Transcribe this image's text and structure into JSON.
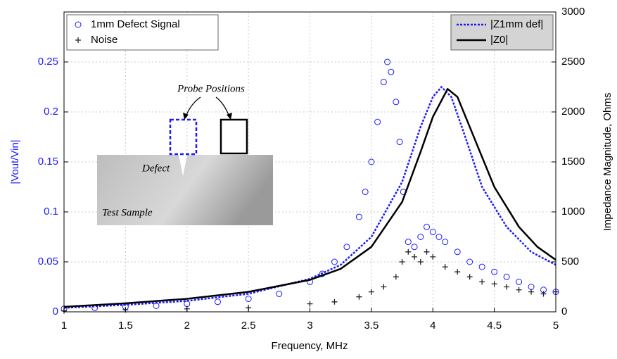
{
  "chart_data": {
    "type": "scatter",
    "xlabel": "Frequency, MHz",
    "ylabel": "|Vout/Vin|",
    "y2label": "Impedance Magnitude, Ohms",
    "xlim": [
      1,
      5
    ],
    "xticks": [
      1,
      1.5,
      2,
      2.5,
      3,
      3.5,
      4,
      4.5,
      5
    ],
    "ylim": [
      0,
      0.3
    ],
    "yticks": [
      0,
      0.05,
      0.1,
      0.15,
      0.2,
      0.25
    ],
    "y2lim": [
      0,
      3000
    ],
    "y2ticks": [
      0,
      500,
      1000,
      1500,
      2000,
      2500,
      3000
    ],
    "grid": true,
    "legend_loc": "upper left",
    "legend2_loc": "upper right",
    "annotations": [
      "Probe Positions",
      "Defect",
      "Test Sample"
    ],
    "series": [
      {
        "name": "1mm Defect Signal",
        "type": "scatter",
        "marker": "circle",
        "color": "#1a1aff",
        "x": [
          1,
          1.25,
          1.5,
          1.75,
          2,
          2.25,
          2.5,
          2.75,
          3,
          3.1,
          3.2,
          3.3,
          3.4,
          3.45,
          3.5,
          3.55,
          3.6,
          3.63,
          3.66,
          3.7,
          3.73,
          3.76,
          3.8,
          3.85,
          3.9,
          3.95,
          4,
          4.05,
          4.1,
          4.2,
          4.3,
          4.4,
          4.5,
          4.6,
          4.7,
          4.8,
          4.9,
          5
        ],
        "values": [
          0.003,
          0.004,
          0.005,
          0.006,
          0.008,
          0.01,
          0.013,
          0.018,
          0.03,
          0.038,
          0.05,
          0.065,
          0.095,
          0.12,
          0.15,
          0.19,
          0.23,
          0.25,
          0.24,
          0.21,
          0.17,
          0.12,
          0.07,
          0.065,
          0.075,
          0.085,
          0.08,
          0.075,
          0.07,
          0.06,
          0.05,
          0.045,
          0.04,
          0.035,
          0.03,
          0.025,
          0.022,
          0.02
        ]
      },
      {
        "name": "Noise",
        "type": "scatter",
        "marker": "plus",
        "color": "#222222",
        "x": [
          1,
          1.5,
          2,
          2.5,
          3,
          3.2,
          3.4,
          3.5,
          3.6,
          3.7,
          3.75,
          3.8,
          3.85,
          3.9,
          3.95,
          4,
          4.1,
          4.2,
          4.3,
          4.4,
          4.5,
          4.6,
          4.7,
          4.8,
          4.9,
          5
        ],
        "values": [
          0.001,
          0.002,
          0.003,
          0.004,
          0.008,
          0.01,
          0.015,
          0.02,
          0.025,
          0.035,
          0.05,
          0.06,
          0.055,
          0.05,
          0.06,
          0.055,
          0.045,
          0.04,
          0.035,
          0.03,
          0.028,
          0.025,
          0.022,
          0.02,
          0.018,
          0.02
        ]
      },
      {
        "name": "|Z1mm def|",
        "type": "line",
        "axis": "y2",
        "linestyle": "dotted",
        "color": "#1a1aff",
        "x": [
          1,
          1.5,
          2,
          2.5,
          3,
          3.25,
          3.5,
          3.75,
          3.9,
          4,
          4.07,
          4.15,
          4.25,
          4.4,
          4.6,
          4.8,
          5
        ],
        "values": [
          40,
          70,
          110,
          180,
          330,
          470,
          750,
          1300,
          1850,
          2150,
          2250,
          2150,
          1800,
          1250,
          850,
          600,
          470
        ]
      },
      {
        "name": "|Z0|",
        "type": "line",
        "axis": "y2",
        "linestyle": "solid",
        "color": "#000000",
        "x": [
          1,
          1.5,
          2,
          2.5,
          3,
          3.25,
          3.5,
          3.75,
          3.9,
          4,
          4.12,
          4.2,
          4.3,
          4.5,
          4.7,
          4.85,
          5
        ],
        "values": [
          50,
          85,
          130,
          200,
          320,
          430,
          650,
          1100,
          1600,
          1950,
          2230,
          2150,
          1850,
          1250,
          850,
          650,
          520
        ]
      }
    ]
  }
}
